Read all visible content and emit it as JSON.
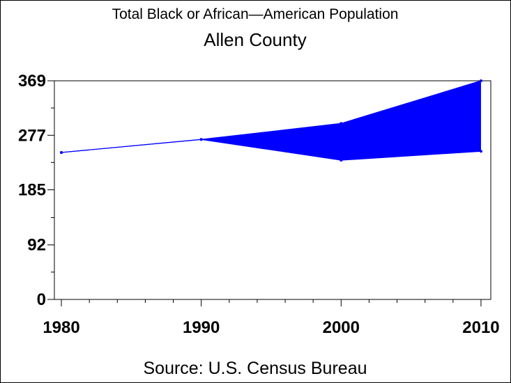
{
  "chart_data": {
    "type": "area",
    "title": "Total Black or African—American Population",
    "subtitle": "Allen County",
    "source": "Source: U.S. Census Bureau",
    "xlabel": "",
    "ylabel": "",
    "x": [
      1980,
      1990,
      2000,
      2010
    ],
    "x_tick_labels": [
      "1980",
      "1990",
      "2000",
      "2010"
    ],
    "y_tick_labels": [
      "0",
      "92",
      "185",
      "277",
      "369"
    ],
    "y_ticks": [
      0,
      92,
      185,
      277,
      369
    ],
    "ylim": [
      0,
      369
    ],
    "xlim": [
      1979.5,
      2010.7
    ],
    "series": [
      {
        "values": [
          248,
          270,
          297,
          369
        ]
      },
      {
        "values": [
          248,
          270,
          235,
          250
        ]
      }
    ],
    "fill_color": "#0000ff",
    "line_color": "#0000ff",
    "grid": false
  }
}
